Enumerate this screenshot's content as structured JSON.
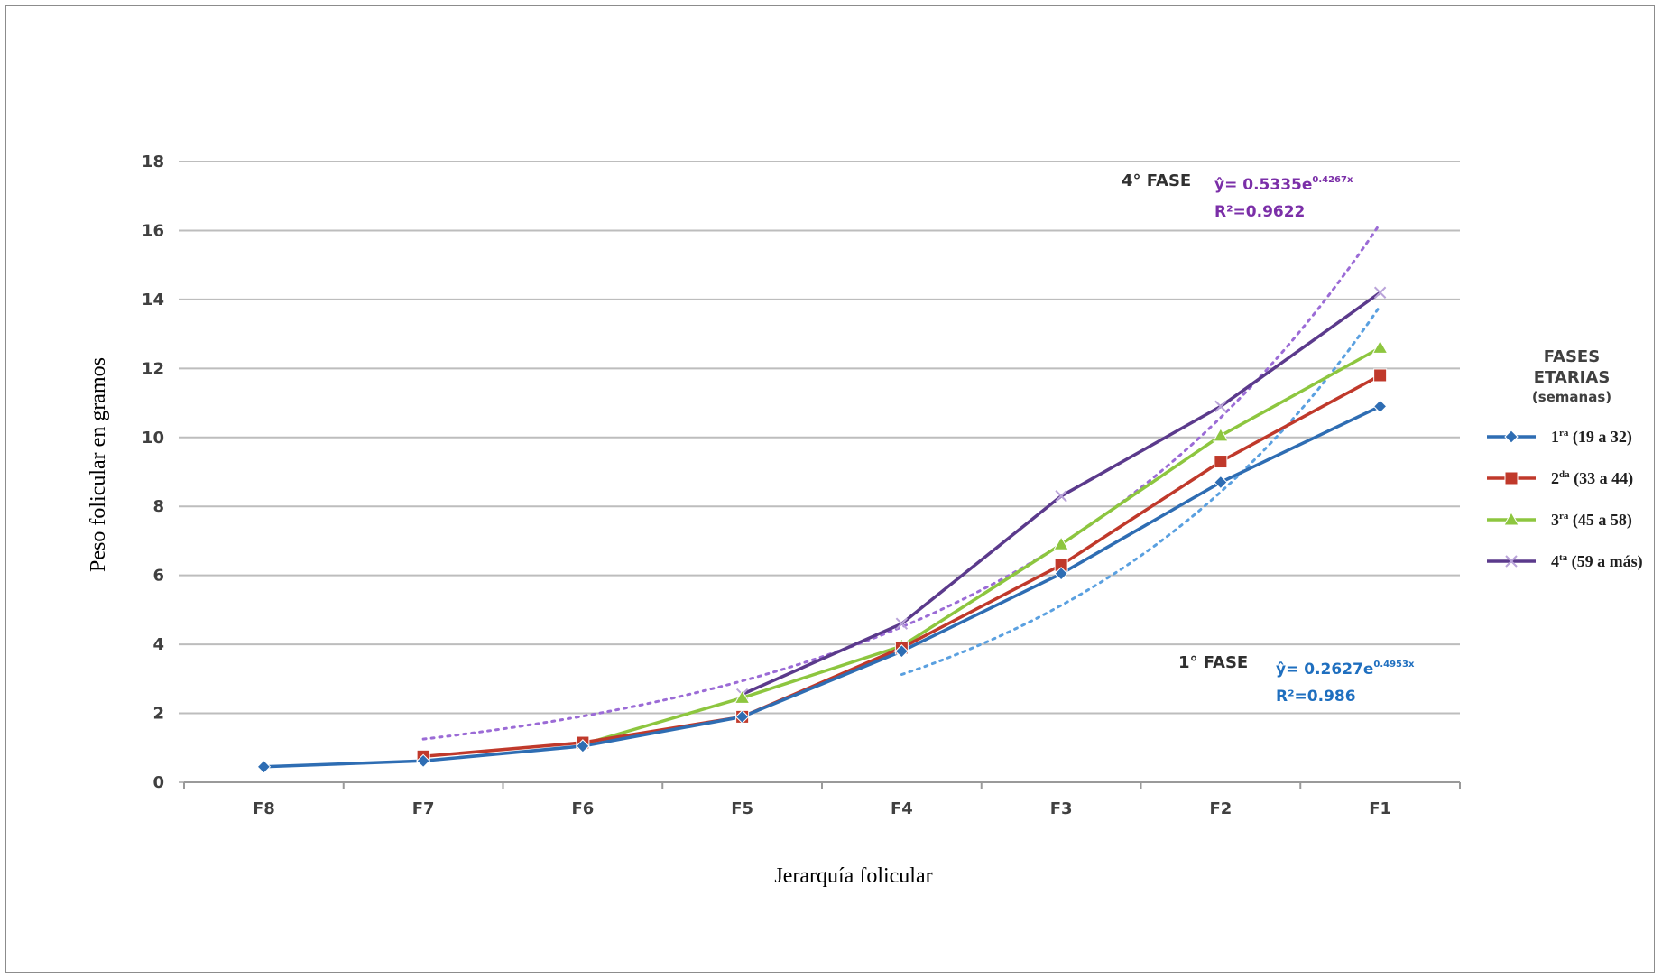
{
  "chart_data": {
    "type": "line",
    "title": "",
    "xlabel": "Jerarquía folicular",
    "ylabel": "Peso folicular en gramos",
    "categories": [
      "F8",
      "F7",
      "F6",
      "F5",
      "F4",
      "F3",
      "F2",
      "F1"
    ],
    "ylim": [
      0,
      18
    ],
    "yticks": [
      0,
      2,
      4,
      6,
      8,
      10,
      12,
      14,
      16,
      18
    ],
    "grid": "horizontal",
    "legend": {
      "title_line1": "FASES",
      "title_line2": "ETARIAS",
      "title_line3": "(semanas)",
      "position": "right"
    },
    "series": [
      {
        "name": "1ra (19 a 32)",
        "ord": "1",
        "ord_sup": "ra",
        "range": " (19 a 32)",
        "color": "#2e6db3",
        "marker": "diamond",
        "values": [
          0.45,
          0.62,
          1.05,
          1.9,
          3.8,
          6.05,
          8.7,
          10.9
        ]
      },
      {
        "name": "2da (33 a 44)",
        "ord": "2",
        "ord_sup": "da",
        "range": " (33 a 44)",
        "color": "#c0392b",
        "marker": "square",
        "values": [
          null,
          0.75,
          1.15,
          1.9,
          3.9,
          6.3,
          9.3,
          11.8
        ]
      },
      {
        "name": "3ra (45 a 58)",
        "ord": "3",
        "ord_sup": "ra",
        "range": " (45 a 58)",
        "color": "#8dc63f",
        "marker": "triangle",
        "values": [
          null,
          null,
          1.1,
          2.45,
          3.95,
          6.9,
          10.05,
          12.6
        ]
      },
      {
        "name": "4ta (59 a más)",
        "ord": "4",
        "ord_sup": "ta",
        "range": " (59 a más)",
        "color": "#5b3a8c",
        "marker": "x",
        "values": [
          null,
          null,
          null,
          2.55,
          4.6,
          8.3,
          10.9,
          14.2
        ]
      }
    ],
    "trendlines": [
      {
        "color": "#5aa0e0",
        "a": 0.2627,
        "b": 0.4953,
        "from": 4
      },
      {
        "color": "#9b6bd6",
        "a": 0.5335,
        "b": 0.4267,
        "from": 1
      }
    ],
    "annotations": [
      {
        "label": "4° FASE",
        "eq_prefix": "ŷ= 0.5335e",
        "eq_exp": "0.4267x",
        "r2": "R²=0.9622",
        "color": "#7b2fa8"
      },
      {
        "label": "1° FASE",
        "eq_prefix": "ŷ= 0.2627e",
        "eq_exp": "0.4953x",
        "r2": "R²=0.986",
        "color": "#1f6fbf"
      }
    ]
  }
}
